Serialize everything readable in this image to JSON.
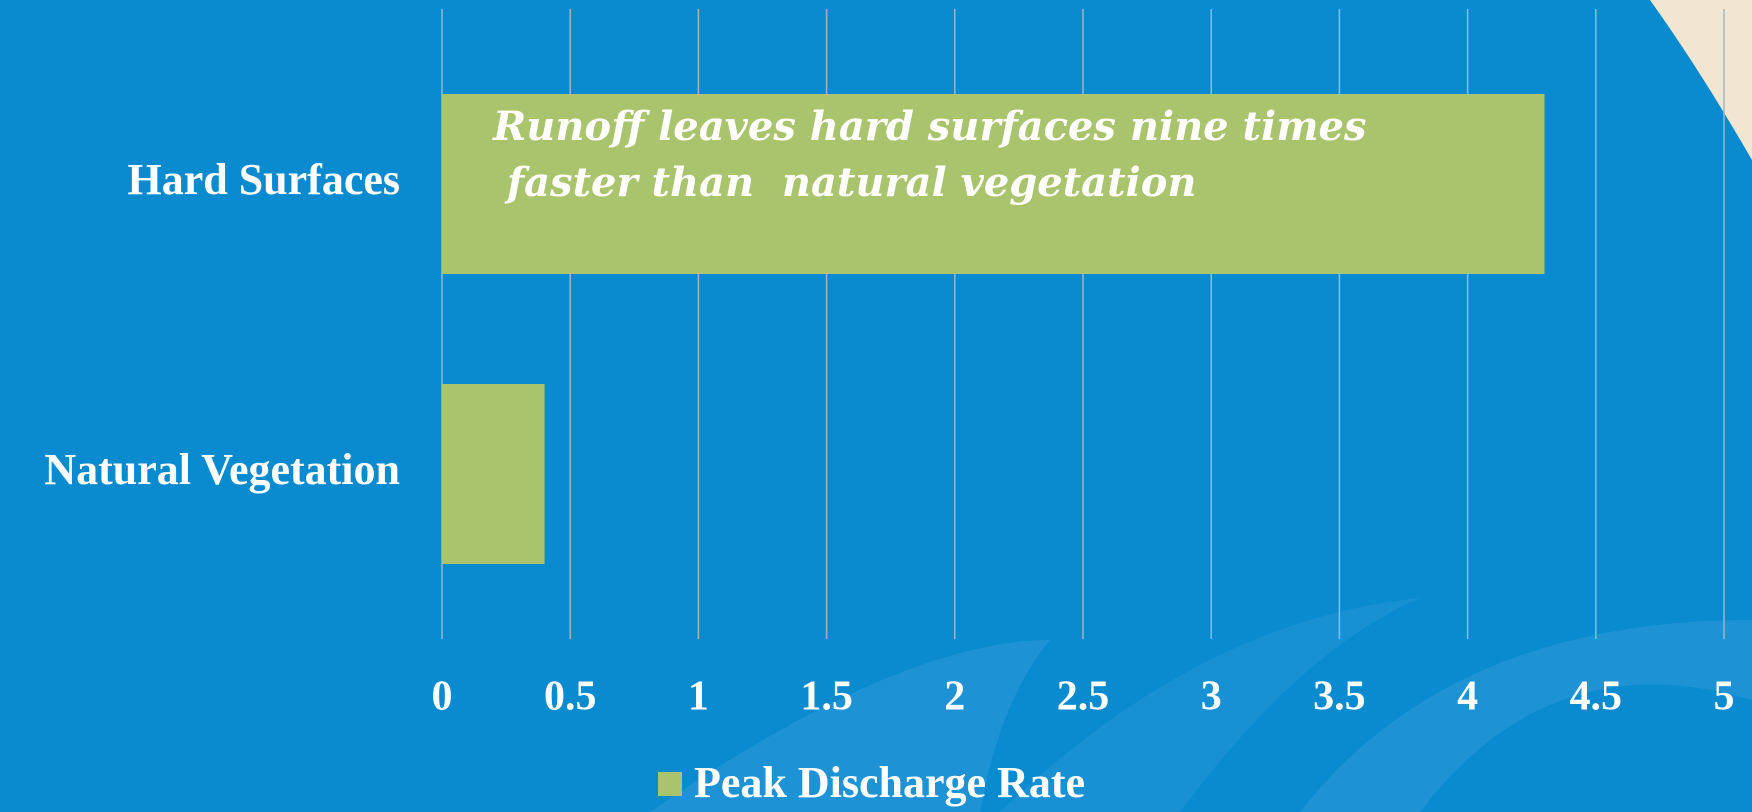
{
  "chart_data": {
    "type": "hbar",
    "categories": [
      "Hard Surfaces",
      "Natural Vegetation"
    ],
    "series": [
      {
        "name": "Peak Discharge Rate",
        "color": "#a9c46c",
        "values": [
          4.3,
          0.4
        ]
      }
    ],
    "xlim": [
      0,
      5
    ],
    "xticks": [
      0,
      0.5,
      1,
      1.5,
      2,
      2.5,
      3,
      3.5,
      4,
      4.5,
      5
    ],
    "grid": true,
    "legend": "bottom",
    "annotation": [
      "Runoff leaves hard surfaces nine times",
      " faster than  natural vegetation"
    ]
  }
}
